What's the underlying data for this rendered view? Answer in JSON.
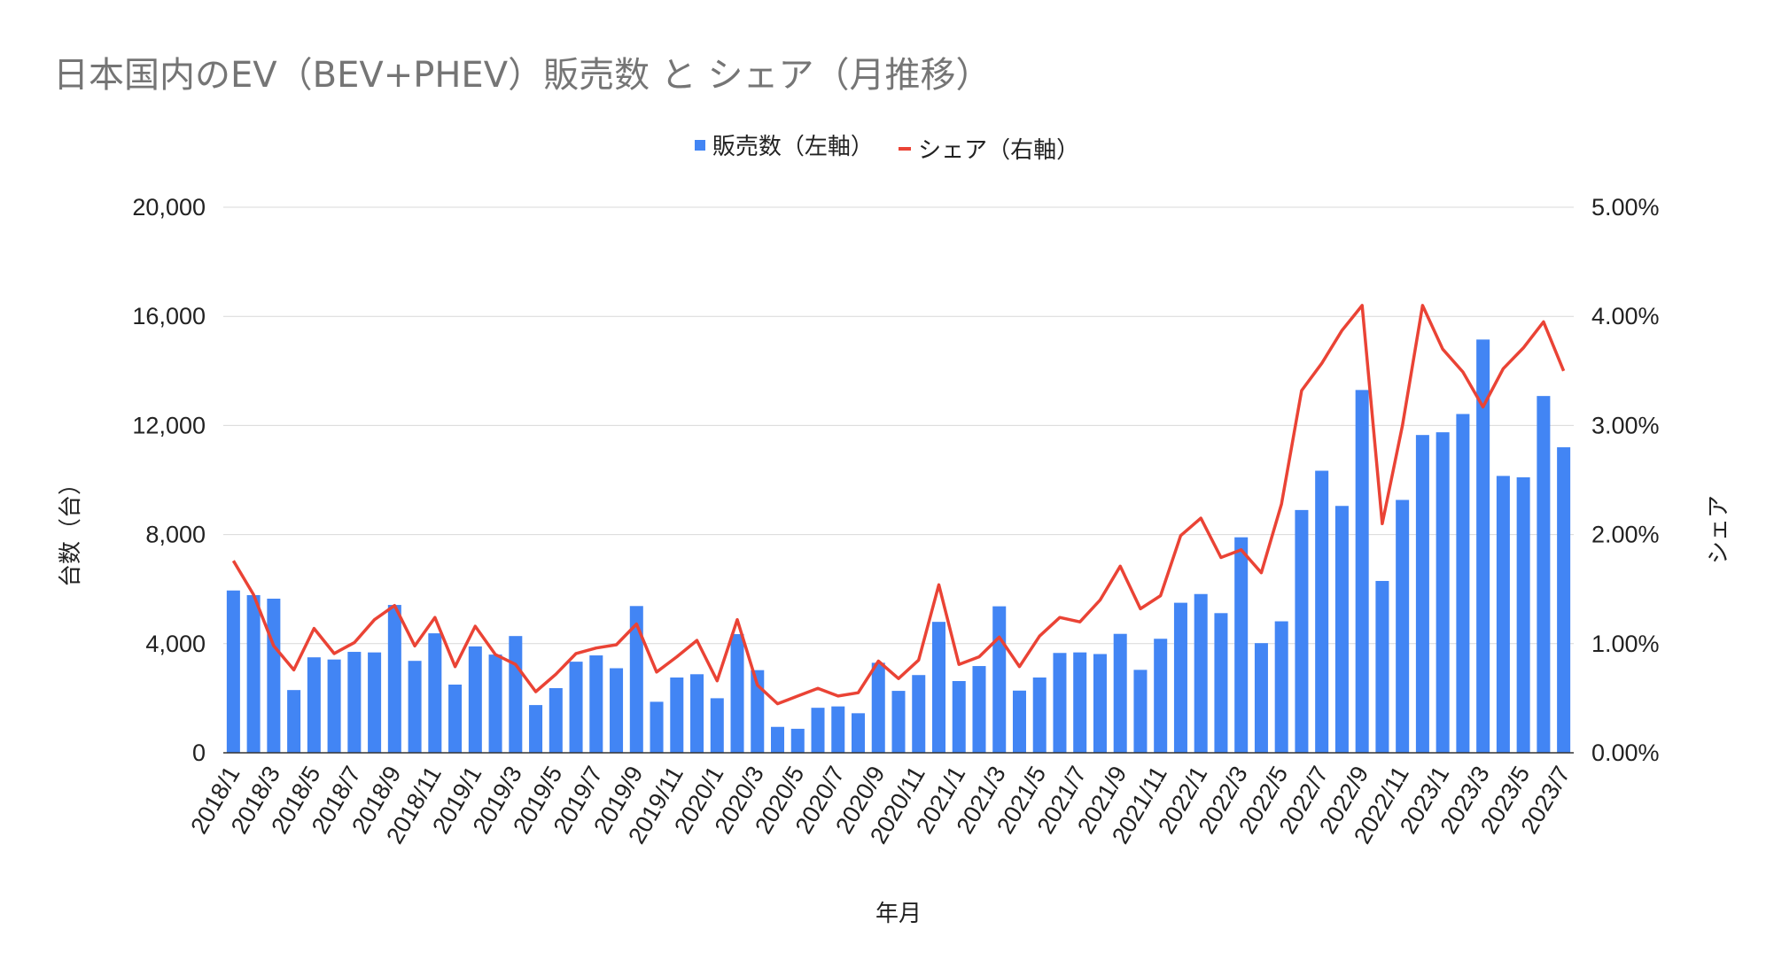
{
  "chart_data": {
    "type": "bar+line",
    "title": "日本国内のEV（BEV+PHEV）販売数 と シェア（月推移）",
    "xlabel": "年月",
    "ylabel_left": "台数（台）",
    "ylabel_right": "シェア",
    "ylim_left": [
      0,
      20000
    ],
    "ylim_right": [
      0,
      5
    ],
    "yticks_left": [
      "0",
      "4,000",
      "8,000",
      "12,000",
      "16,000",
      "20,000"
    ],
    "yticks_right": [
      "0.00%",
      "1.00%",
      "2.00%",
      "3.00%",
      "4.00%",
      "5.00%"
    ],
    "legend_position": "top",
    "grid": true,
    "colors": {
      "bar": "#4285f4",
      "line": "#ea4335"
    },
    "categories": [
      "2018/1",
      "2018/2",
      "2018/3",
      "2018/4",
      "2018/5",
      "2018/6",
      "2018/7",
      "2018/8",
      "2018/9",
      "2018/10",
      "2018/11",
      "2018/12",
      "2019/1",
      "2019/2",
      "2019/3",
      "2019/4",
      "2019/5",
      "2019/6",
      "2019/7",
      "2019/8",
      "2019/9",
      "2019/10",
      "2019/11",
      "2019/12",
      "2020/1",
      "2020/2",
      "2020/3",
      "2020/4",
      "2020/5",
      "2020/6",
      "2020/7",
      "2020/8",
      "2020/9",
      "2020/10",
      "2020/11",
      "2020/12",
      "2021/1",
      "2021/2",
      "2021/3",
      "2021/4",
      "2021/5",
      "2021/6",
      "2021/7",
      "2021/8",
      "2021/9",
      "2021/10",
      "2021/11",
      "2021/12",
      "2022/1",
      "2022/2",
      "2022/3",
      "2022/4",
      "2022/5",
      "2022/6",
      "2022/7",
      "2022/8",
      "2022/9",
      "2022/10",
      "2022/11",
      "2022/12",
      "2023/1",
      "2023/2",
      "2023/3",
      "2023/4",
      "2023/5",
      "2023/6",
      "2023/7"
    ],
    "xtick_labels": [
      "2018/1",
      "2018/3",
      "2018/5",
      "2018/7",
      "2018/9",
      "2018/11",
      "2019/1",
      "2019/3",
      "2019/5",
      "2019/7",
      "2019/9",
      "2019/11",
      "2020/1",
      "2020/3",
      "2020/5",
      "2020/7",
      "2020/9",
      "2020/11",
      "2021/1",
      "2021/3",
      "2021/5",
      "2021/7",
      "2021/9",
      "2021/11",
      "2022/1",
      "2022/3",
      "2022/5",
      "2022/7",
      "2022/9",
      "2022/11",
      "2023/1",
      "2023/3",
      "2023/5",
      "2023/7"
    ],
    "series": [
      {
        "name": "販売数（左軸）",
        "type": "bar",
        "axis": "left",
        "values": [
          5950,
          5780,
          5650,
          2300,
          3500,
          3420,
          3700,
          3680,
          5420,
          3370,
          4380,
          2500,
          3900,
          3600,
          4280,
          1750,
          2370,
          3340,
          3570,
          3100,
          5380,
          1870,
          2760,
          2880,
          2000,
          4350,
          3030,
          950,
          880,
          1650,
          1700,
          1450,
          3300,
          2270,
          2850,
          4800,
          2630,
          3180,
          5370,
          2280,
          2760,
          3660,
          3680,
          3620,
          4360,
          3040,
          4180,
          5500,
          5820,
          5120,
          7900,
          4020,
          4820,
          8900,
          10340,
          9050,
          13300,
          6300,
          9270,
          11650,
          11750,
          12420,
          15150,
          10150,
          10100,
          13080,
          11200
        ]
      },
      {
        "name": "シェア（右軸）",
        "type": "line",
        "axis": "right",
        "values": [
          1.76,
          1.45,
          0.98,
          0.76,
          1.14,
          0.91,
          1.01,
          1.22,
          1.35,
          0.98,
          1.24,
          0.79,
          1.16,
          0.9,
          0.81,
          0.56,
          0.72,
          0.91,
          0.96,
          0.99,
          1.18,
          0.74,
          0.88,
          1.03,
          0.66,
          1.22,
          0.62,
          0.45,
          0.52,
          0.59,
          0.52,
          0.55,
          0.84,
          0.68,
          0.85,
          1.54,
          0.81,
          0.88,
          1.06,
          0.79,
          1.07,
          1.24,
          1.2,
          1.4,
          1.71,
          1.32,
          1.44,
          1.99,
          2.15,
          1.79,
          1.86,
          1.65,
          2.28,
          3.32,
          3.57,
          3.87,
          4.1,
          2.1,
          3.0,
          4.1,
          3.7,
          3.49,
          3.17,
          3.52,
          3.71,
          3.95,
          3.5
        ]
      }
    ]
  }
}
